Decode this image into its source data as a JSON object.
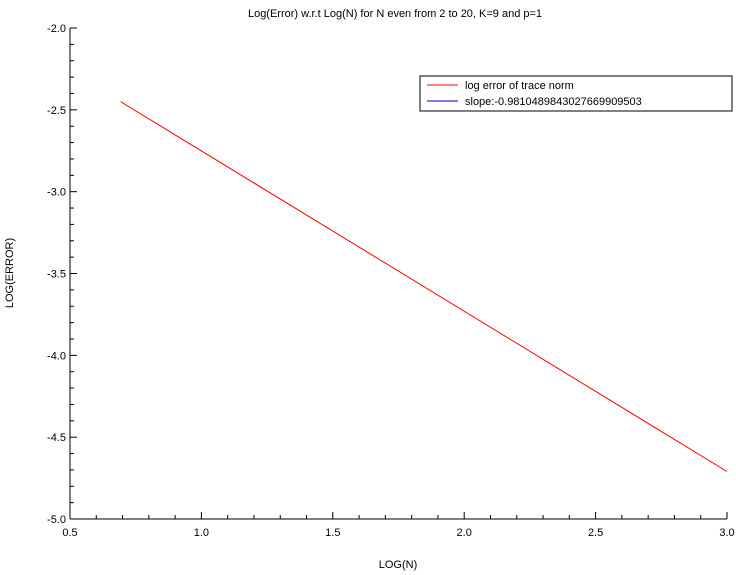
{
  "chart_data": {
    "type": "line",
    "title": "Log(Error) w.r.t Log(N) for N even from 2 to 20, K=9 and p=1",
    "xlabel": "LOG(N)",
    "ylabel": "LOG(ERROR)",
    "xlim": [
      0.5,
      3.0
    ],
    "ylim": [
      -5.0,
      -2.0
    ],
    "x_ticks": [
      "0.5",
      "1.0",
      "1.5",
      "2.0",
      "2.5",
      "3.0"
    ],
    "y_ticks": [
      "-2.0",
      "-2.5",
      "-3.0",
      "-3.5",
      "-4.0",
      "-4.5",
      "-5.0"
    ],
    "grid": false,
    "legend_position": "top-right",
    "series": [
      {
        "name": "log error of trace norm",
        "color": "#ff0000",
        "x": [
          0.693,
          3.0
        ],
        "y": [
          -2.45,
          -4.71
        ]
      },
      {
        "name": "slope:-0.9810489843027669909503",
        "color": "#0000cc",
        "x": [],
        "y": []
      }
    ]
  }
}
